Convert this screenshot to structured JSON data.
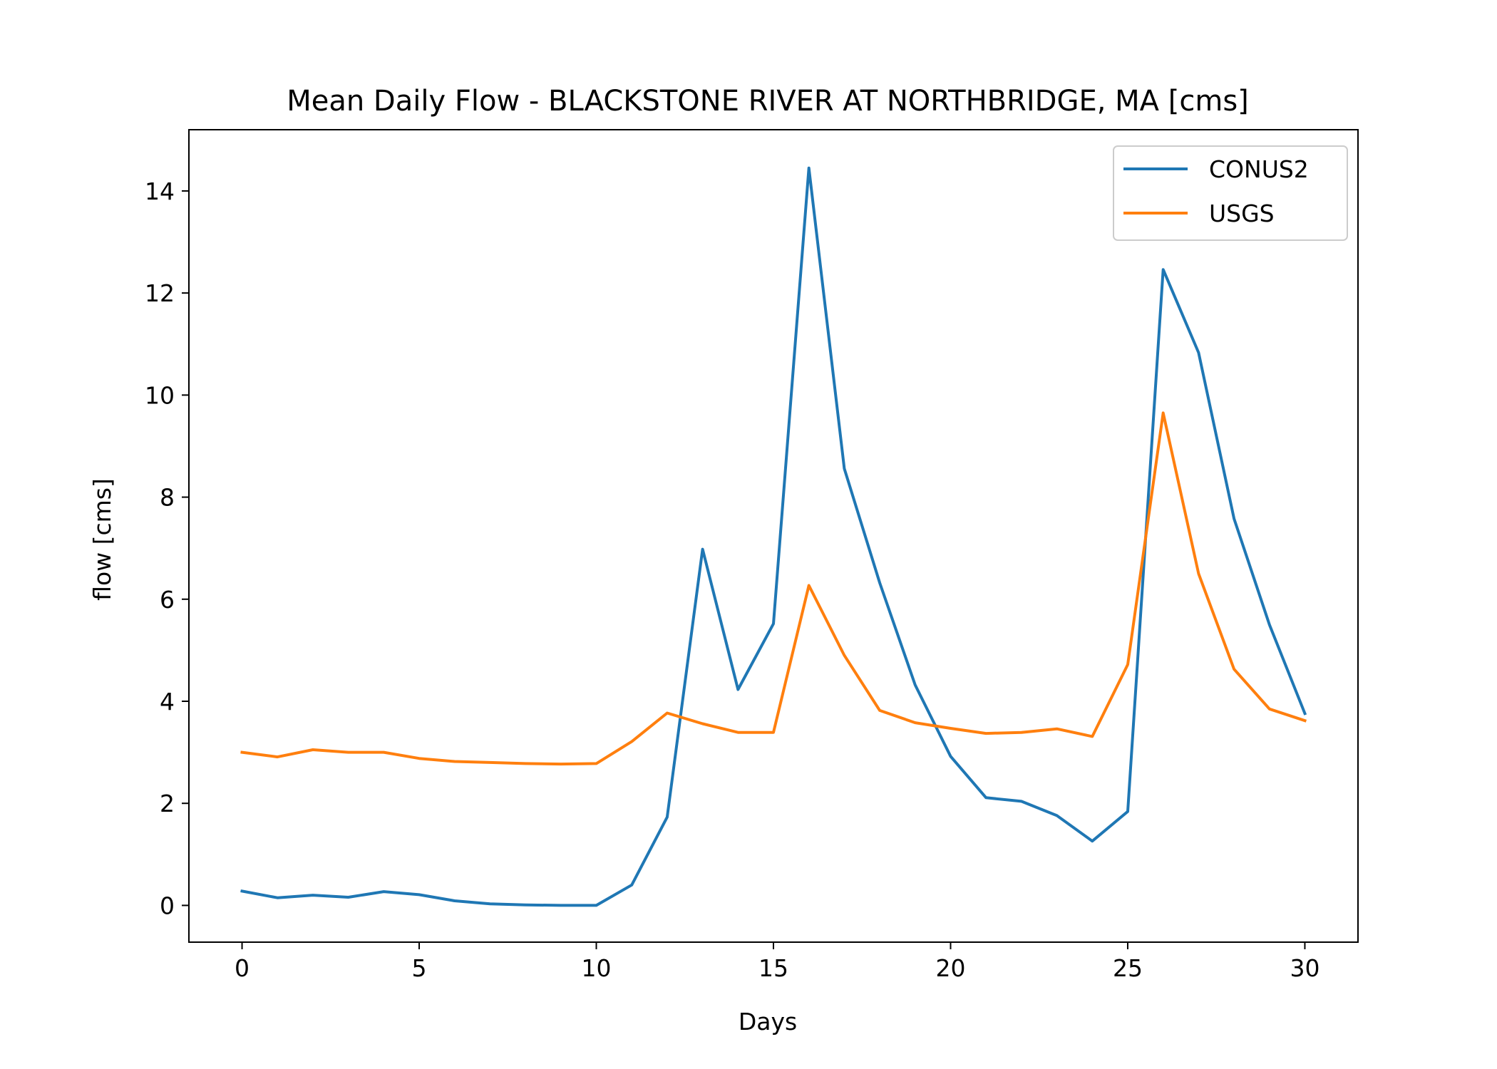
{
  "chart_data": {
    "type": "line",
    "title": "Mean Daily Flow - BLACKSTONE RIVER AT NORTHBRIDGE, MA [cms]",
    "xlabel": "Days",
    "ylabel": "flow [cms]",
    "xlim": [
      -1.5,
      31.5
    ],
    "ylim": [
      -0.72,
      15.2
    ],
    "xticks": [
      0,
      5,
      10,
      15,
      20,
      25,
      30
    ],
    "yticks": [
      0,
      2,
      4,
      6,
      8,
      10,
      12,
      14
    ],
    "grid": false,
    "legend_position": "top-right",
    "x": [
      0,
      1,
      2,
      3,
      4,
      5,
      6,
      7,
      8,
      9,
      10,
      11,
      12,
      13,
      14,
      15,
      16,
      17,
      18,
      19,
      20,
      21,
      22,
      23,
      24,
      25,
      26,
      27,
      28,
      29,
      30
    ],
    "series": [
      {
        "name": "CONUS2",
        "color": "#1f77b4",
        "values": [
          0.28,
          0.15,
          0.2,
          0.16,
          0.27,
          0.21,
          0.09,
          0.03,
          0.01,
          0.0,
          0.0,
          0.4,
          1.73,
          6.98,
          4.23,
          5.52,
          14.45,
          8.56,
          6.32,
          4.32,
          2.92,
          2.11,
          2.04,
          1.76,
          1.26,
          1.84,
          12.46,
          10.83,
          7.58,
          5.5,
          3.76
        ]
      },
      {
        "name": "USGS",
        "color": "#ff7f0e",
        "values": [
          3.0,
          2.91,
          3.05,
          3.0,
          3.0,
          2.88,
          2.82,
          2.8,
          2.78,
          2.77,
          2.78,
          3.21,
          3.77,
          3.56,
          3.39,
          3.39,
          6.27,
          4.9,
          3.82,
          3.58,
          3.47,
          3.37,
          3.39,
          3.46,
          3.31,
          4.72,
          9.65,
          6.5,
          4.63,
          3.85,
          3.62
        ]
      }
    ]
  }
}
